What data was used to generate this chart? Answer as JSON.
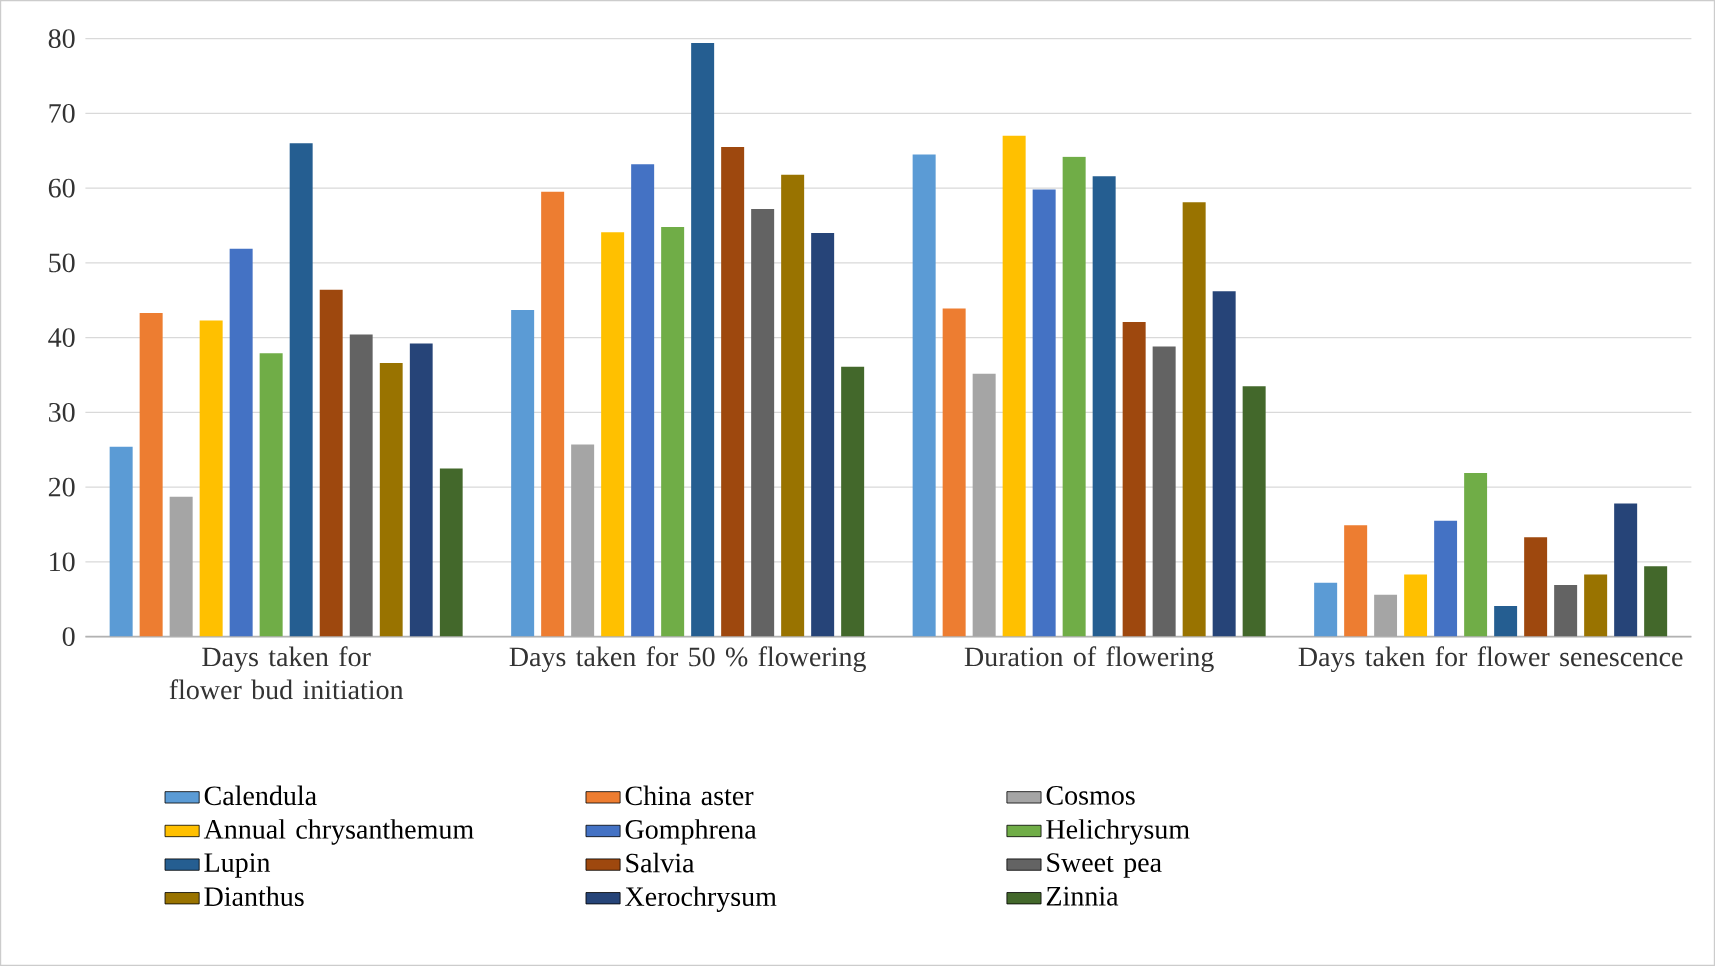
{
  "chart_data": {
    "type": "bar",
    "categories": [
      "Days taken for flower bud initiation",
      "Days taken for 50 % flowering",
      "Duration of flowering",
      "Days taken for flower senescence"
    ],
    "series": [
      {
        "name": "Calendula",
        "color": "#5b9bd5",
        "values": [
          25.4,
          43.7,
          64.5,
          7.2
        ]
      },
      {
        "name": "China aster",
        "color": "#ed7d31",
        "values": [
          43.3,
          59.5,
          43.9,
          14.9
        ]
      },
      {
        "name": "Cosmos",
        "color": "#a5a5a5",
        "values": [
          18.7,
          25.7,
          35.2,
          5.6
        ]
      },
      {
        "name": "Annual chrysanthemum",
        "color": "#ffc000",
        "values": [
          42.3,
          54.1,
          67.0,
          8.3
        ]
      },
      {
        "name": "Gomphrena",
        "color": "#4472c4",
        "values": [
          51.9,
          63.2,
          59.8,
          15.5
        ]
      },
      {
        "name": "Helichrysum",
        "color": "#70ad47",
        "values": [
          37.9,
          54.8,
          64.2,
          21.9
        ]
      },
      {
        "name": "Lupin",
        "color": "#255e91",
        "values": [
          66.0,
          79.4,
          61.6,
          4.1
        ]
      },
      {
        "name": "Salvia",
        "color": "#9e480e",
        "values": [
          46.4,
          65.5,
          42.1,
          13.3
        ]
      },
      {
        "name": "Sweet pea",
        "color": "#636363",
        "values": [
          40.4,
          57.2,
          38.8,
          6.9
        ]
      },
      {
        "name": "Dianthus",
        "color": "#997300",
        "values": [
          36.6,
          61.8,
          58.1,
          8.3
        ]
      },
      {
        "name": "Xerochrysum",
        "color": "#264478",
        "values": [
          39.2,
          54.0,
          46.2,
          17.8
        ]
      },
      {
        "name": "Zinnia",
        "color": "#43682b",
        "values": [
          22.5,
          36.1,
          33.5,
          9.4
        ]
      }
    ],
    "ylim": [
      0,
      80
    ],
    "yticks": [
      0,
      10,
      20,
      30,
      40,
      50,
      60,
      70,
      80
    ],
    "grid": "y",
    "legend": "bottom"
  }
}
